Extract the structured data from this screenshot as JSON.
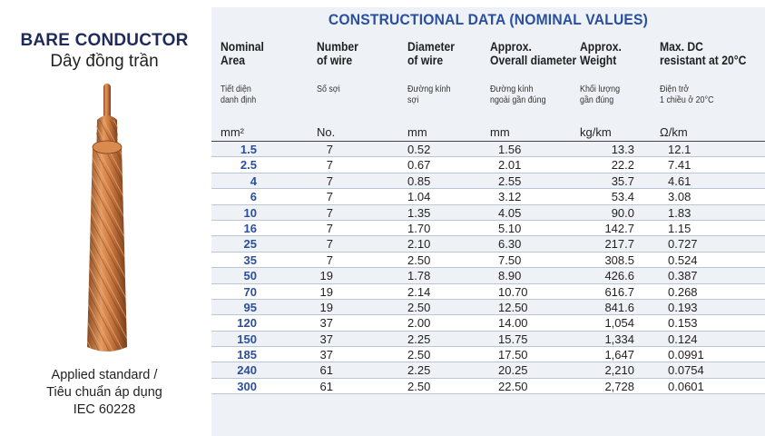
{
  "product": {
    "title": "BARE CONDUCTOR",
    "subtitle": "Dây đồng trần",
    "standard_lines": [
      "Applied standard /",
      "Tiêu chuẩn áp dụng",
      "IEC 60228"
    ]
  },
  "table": {
    "title": "CONSTRUCTIONAL DATA (NOMINAL VALUES)",
    "headers": [
      [
        "Nominal",
        "Area"
      ],
      [
        "Number",
        "of wire"
      ],
      [
        "Diameter",
        "of wire"
      ],
      [
        "Approx.",
        "Overall diameter"
      ],
      [
        "Approx.",
        "Weight"
      ],
      [
        "Max. DC",
        "resistant at 20°C"
      ]
    ],
    "headers_vi": [
      [
        "Tiết diện",
        "danh định"
      ],
      [
        "Số sợi",
        ""
      ],
      [
        "Đường kính",
        "sợi"
      ],
      [
        "Đường kính",
        "ngoài gần đúng"
      ],
      [
        "Khối lượng",
        "gần đúng"
      ],
      [
        "Điện trở",
        "1 chiều ở 20°C"
      ]
    ],
    "units": [
      "mm²",
      "No.",
      "mm",
      "mm",
      "kg/km",
      "Ω/km"
    ],
    "rows": [
      [
        "1.5",
        "7",
        "0.52",
        "1.56",
        "13.3",
        "12.1"
      ],
      [
        "2.5",
        "7",
        "0.67",
        "2.01",
        "22.2",
        "7.41"
      ],
      [
        "4",
        "7",
        "0.85",
        "2.55",
        "35.7",
        "4.61"
      ],
      [
        "6",
        "7",
        "1.04",
        "3.12",
        "53.4",
        "3.08"
      ],
      [
        "10",
        "7",
        "1.35",
        "4.05",
        "90.0",
        "1.83"
      ],
      [
        "16",
        "7",
        "1.70",
        "5.10",
        "142.7",
        "1.15"
      ],
      [
        "25",
        "7",
        "2.10",
        "6.30",
        "217.7",
        "0.727"
      ],
      [
        "35",
        "7",
        "2.50",
        "7.50",
        "308.5",
        "0.524"
      ],
      [
        "50",
        "19",
        "1.78",
        "8.90",
        "426.6",
        "0.387"
      ],
      [
        "70",
        "19",
        "2.14",
        "10.70",
        "616.7",
        "0.268"
      ],
      [
        "95",
        "19",
        "2.50",
        "12.50",
        "841.6",
        "0.193"
      ],
      [
        "120",
        "37",
        "2.00",
        "14.00",
        "1,054",
        "0.153"
      ],
      [
        "150",
        "37",
        "2.25",
        "15.75",
        "1,334",
        "0.124"
      ],
      [
        "185",
        "37",
        "2.50",
        "17.50",
        "1,647",
        "0.0991"
      ],
      [
        "240",
        "61",
        "2.25",
        "20.25",
        "2,210",
        "0.0754"
      ],
      [
        "300",
        "61",
        "2.50",
        "22.50",
        "2,728",
        "0.0601"
      ]
    ]
  },
  "colors": {
    "accent": "#2a4f9e",
    "title_dark": "#1e2a5a",
    "panel": "#eef2f6",
    "copper": "#c9773f"
  }
}
